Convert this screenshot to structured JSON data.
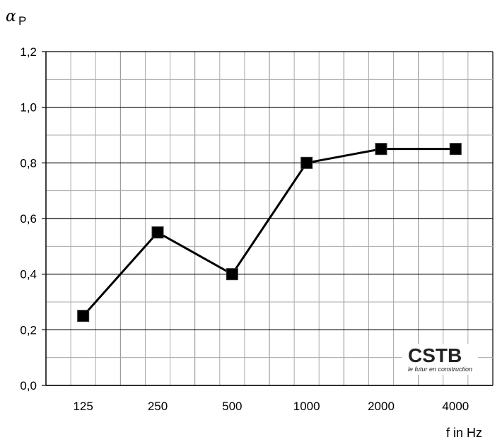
{
  "chart_data": {
    "type": "line",
    "categories": [
      "125",
      "250",
      "500",
      "1000",
      "2000",
      "4000"
    ],
    "values": [
      0.25,
      0.55,
      0.4,
      0.8,
      0.85,
      0.85
    ],
    "ylabel_symbol": "α",
    "ylabel_subscript": "P",
    "xlabel": "f in Hz",
    "ylim": [
      0.0,
      1.2
    ],
    "yticks": [
      "0,0",
      "0,2",
      "0,4",
      "0,6",
      "0,8",
      "1,0",
      "1,2"
    ],
    "grid": true,
    "marker": "square",
    "line_color": "#000000"
  },
  "logo": {
    "name": "CSTB",
    "tagline": "le futur en construction"
  }
}
